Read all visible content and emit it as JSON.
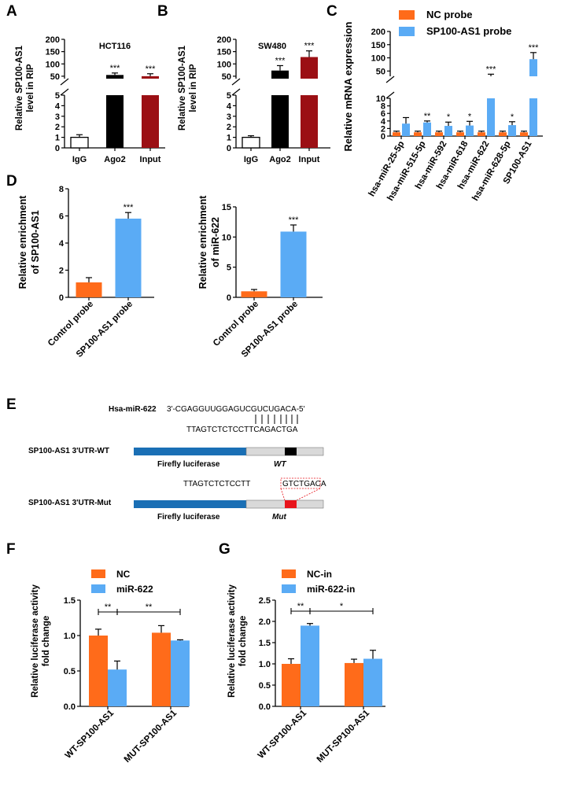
{
  "chart_data": [
    {
      "panel": "A",
      "type": "bar",
      "broken_axis": true,
      "title": "HCT116",
      "ylabel": [
        "Relative SP100-AS1",
        "level in RIP"
      ],
      "categories": [
        "IgG",
        "Ago2",
        "Input"
      ],
      "values": [
        1.0,
        55,
        50
      ],
      "errors": [
        0.25,
        8,
        10
      ],
      "colors": [
        "#ffffff",
        "#000000",
        "#9b0f14"
      ],
      "significance": [
        "",
        "***",
        "***"
      ],
      "lower_ticks": [
        "0",
        "1",
        "2",
        "3",
        "4",
        "5"
      ],
      "upper_ticks": [
        "50",
        "100",
        "150",
        "200"
      ]
    },
    {
      "panel": "B",
      "type": "bar",
      "broken_axis": true,
      "title": "SW480",
      "ylabel": [
        "Relative SP100-AS1",
        "level in RIP"
      ],
      "categories": [
        "IgG",
        "Ago2",
        "Input"
      ],
      "values": [
        1.0,
        73,
        128
      ],
      "errors": [
        0.15,
        20,
        25
      ],
      "colors": [
        "#ffffff",
        "#000000",
        "#9b0f14"
      ],
      "significance": [
        "",
        "***",
        "***"
      ],
      "lower_ticks": [
        "0",
        "1",
        "2",
        "3",
        "4",
        "5"
      ],
      "upper_ticks": [
        "50",
        "100",
        "150",
        "200"
      ]
    },
    {
      "panel": "C",
      "type": "bar",
      "broken_axis": true,
      "ylabel": "Relative mRNA expression",
      "categories": [
        "hsa-miR-25-5p",
        "hsa-miR-515-5p",
        "hsa-miR-592",
        "hsa-miR-618",
        "hsa-miR-622",
        "hsa-miR-628-5p",
        "SP100-AS1"
      ],
      "series": [
        {
          "name": "NC probe",
          "color": "#ff6b1a",
          "values": [
            1.0,
            1.0,
            1.0,
            1.0,
            1.0,
            1.0,
            1.0
          ],
          "errors": [
            0.3,
            0.3,
            0.3,
            0.3,
            0.3,
            0.3,
            0.3
          ]
        },
        {
          "name": "SP100-AS1  probe",
          "color": "#5aabf5",
          "values": [
            3.3,
            3.6,
            2.7,
            2.8,
            30,
            2.9,
            95
          ],
          "errors": [
            1.6,
            0.4,
            1.0,
            1.1,
            8,
            0.9,
            25
          ]
        }
      ],
      "significance": [
        "",
        "**",
        "*",
        "*",
        "***",
        "*",
        "***"
      ],
      "lower_ticks": [
        "0",
        "2",
        "4",
        "6",
        "8",
        "10"
      ],
      "upper_ticks": [
        "50",
        "100",
        "150",
        "200"
      ]
    },
    {
      "panel": "D1",
      "type": "bar",
      "ylabel": [
        "Relative enrichment",
        "of SP100-AS1"
      ],
      "categories": [
        "Control probe",
        "SP100-AS1 probe"
      ],
      "values": [
        1.1,
        5.8
      ],
      "errors": [
        0.35,
        0.45
      ],
      "colors": [
        "#ff6b1a",
        "#5aabf5"
      ],
      "significance": [
        "",
        "***"
      ],
      "ylim": [
        0,
        8
      ],
      "yticks": [
        "0",
        "2",
        "4",
        "6",
        "8"
      ]
    },
    {
      "panel": "D2",
      "type": "bar",
      "ylabel": [
        "Relative enrichment",
        "of miR-622"
      ],
      "categories": [
        "Control probe",
        "SP100-AS1 probe"
      ],
      "values": [
        1.0,
        10.9
      ],
      "errors": [
        0.3,
        1.1
      ],
      "colors": [
        "#ff6b1a",
        "#5aabf5"
      ],
      "significance": [
        "",
        "***"
      ],
      "ylim": [
        0,
        15
      ],
      "yticks": [
        "0",
        "5",
        "10",
        "15"
      ]
    },
    {
      "panel": "F",
      "type": "bar",
      "ylabel": [
        "Relative luciferase activity",
        "fold change"
      ],
      "categories": [
        "WT-SP100-AS1",
        "MUT-SP100-AS1"
      ],
      "series": [
        {
          "name": "NC",
          "color": "#ff6b1a",
          "values": [
            1.0,
            1.04
          ],
          "errors": [
            0.09,
            0.1
          ]
        },
        {
          "name": "miR-622",
          "color": "#5aabf5",
          "values": [
            0.52,
            0.93
          ],
          "errors": [
            0.12,
            0.01
          ]
        }
      ],
      "brackets": [
        "**",
        "**"
      ],
      "ylim": [
        0,
        1.5
      ],
      "yticks": [
        "0.0",
        "0.5",
        "1.0",
        "1.5"
      ]
    },
    {
      "panel": "G",
      "type": "bar",
      "ylabel": [
        "Relative luciferase activity",
        "fold change"
      ],
      "categories": [
        "WT-SP100-AS1",
        "MUT-SP100-AS1"
      ],
      "series": [
        {
          "name": "NC-in",
          "color": "#ff6b1a",
          "values": [
            1.0,
            1.02
          ],
          "errors": [
            0.12,
            0.09
          ]
        },
        {
          "name": "miR-622-in",
          "color": "#5aabf5",
          "values": [
            1.9,
            1.12
          ],
          "errors": [
            0.05,
            0.2
          ]
        }
      ],
      "brackets": [
        "**",
        "*"
      ],
      "ylim": [
        0,
        2.5
      ],
      "yticks": [
        "0.0",
        "0.5",
        "1.0",
        "1.5",
        "2.0",
        "2.5"
      ]
    }
  ],
  "panel_labels": {
    "a": "A",
    "b": "B",
    "c": "C",
    "d": "D",
    "e": "E",
    "f": "F",
    "g": "G"
  },
  "diagram": {
    "mirna_label": "Hsa-miR-622",
    "mirna_seq": "3'-CGAGGUUGGAGUCGUCUGACA-5'",
    "wt_seq": "TTAGTCTCTCCTTCAGACTGA",
    "wt_construct": "SP100-AS1 3'UTR-WT",
    "mut_seq_prefix": "TTAGTCTCTCCTT",
    "mut_seq_box": "GTCTGACA",
    "mut_construct": "SP100-AS1 3'UTR-Mut",
    "luciferase_label": "Firefly luciferase",
    "wt_label": "WT",
    "mut_label": "Mut",
    "colors": {
      "luciferase": "#1a6fb5",
      "utr": "#d9d9d9",
      "wt_site": "#000000",
      "mut_site": "#e8141b"
    }
  }
}
